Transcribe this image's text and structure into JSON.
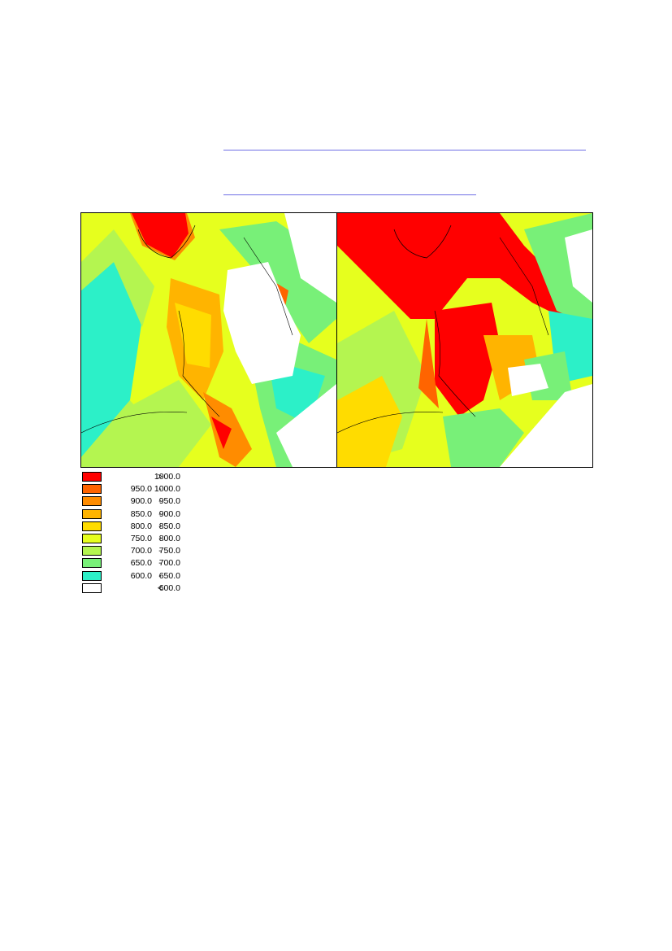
{
  "legend": {
    "items": [
      {
        "color": "#ff0000",
        "lo": "",
        "sep": ">",
        "hi": "1000.0"
      },
      {
        "color": "#ff6400",
        "lo": "950.0",
        "sep": "-",
        "hi": "1000.0"
      },
      {
        "color": "#ff8c00",
        "lo": "900.0",
        "sep": "-",
        "hi": "950.0"
      },
      {
        "color": "#ffb400",
        "lo": "850.0",
        "sep": "-",
        "hi": "900.0"
      },
      {
        "color": "#ffdc00",
        "lo": "800.0",
        "sep": "-",
        "hi": "850.0"
      },
      {
        "color": "#e6ff1e",
        "lo": "750.0",
        "sep": "-",
        "hi": "800.0"
      },
      {
        "color": "#b4f550",
        "lo": "700.0",
        "sep": "-",
        "hi": "750.0"
      },
      {
        "color": "#78f078",
        "lo": "650.0",
        "sep": "-",
        "hi": "700.0"
      },
      {
        "color": "#2cf0c8",
        "lo": "600.0",
        "sep": "-",
        "hi": "650.0"
      },
      {
        "color": "#ffffff",
        "lo": "",
        "sep": "<",
        "hi": "600.0"
      }
    ]
  },
  "maps": [
    {
      "name": "left"
    },
    {
      "name": "right"
    }
  ]
}
